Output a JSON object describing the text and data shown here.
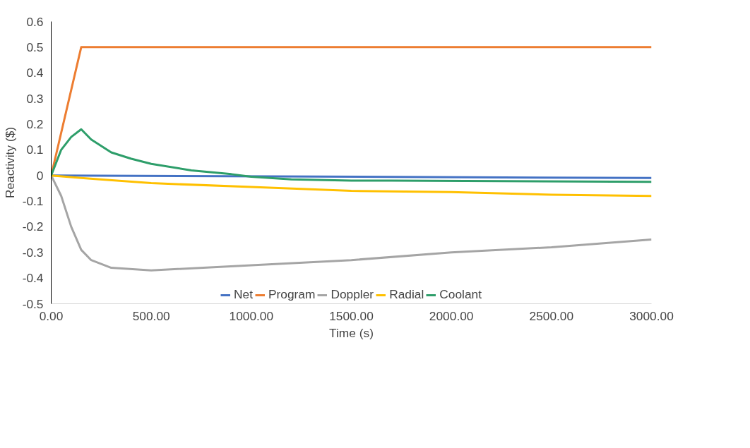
{
  "chart_data": {
    "type": "line",
    "xlabel": "Time (s)",
    "ylabel": "Reactivity ($)",
    "xlim": [
      0,
      3000
    ],
    "ylim": [
      -0.5,
      0.6
    ],
    "xticks": [
      {
        "value": 0,
        "label": "0.00"
      },
      {
        "value": 500,
        "label": "500.00"
      },
      {
        "value": 1000,
        "label": "1000.00"
      },
      {
        "value": 1500,
        "label": "1500.00"
      },
      {
        "value": 2000,
        "label": "2000.00"
      },
      {
        "value": 2500,
        "label": "2500.00"
      },
      {
        "value": 3000,
        "label": "3000.00"
      }
    ],
    "yticks": [
      -0.5,
      -0.4,
      -0.3,
      -0.2,
      -0.1,
      0,
      0.1,
      0.2,
      0.3,
      0.4,
      0.5,
      0.6
    ],
    "grid": false,
    "legend": "bottom",
    "marker": "none",
    "line_style": "solid",
    "series": [
      {
        "name": "Net",
        "color": "#4472c4",
        "x": [
          0,
          3000
        ],
        "values": [
          0,
          -0.01
        ]
      },
      {
        "name": "Program",
        "color": "#ed7d31",
        "x": [
          0,
          150,
          3000
        ],
        "values": [
          0,
          0.5,
          0.5
        ]
      },
      {
        "name": "Doppler",
        "color": "#a5a5a5",
        "x": [
          0,
          50,
          100,
          150,
          200,
          300,
          500,
          1000,
          1500,
          2000,
          2500,
          3000
        ],
        "values": [
          0,
          -0.08,
          -0.2,
          -0.29,
          -0.33,
          -0.36,
          -0.37,
          -0.35,
          -0.33,
          -0.3,
          -0.28,
          -0.25
        ]
      },
      {
        "name": "Radial",
        "color": "#ffc000",
        "x": [
          0,
          150,
          500,
          1000,
          1500,
          2000,
          2500,
          3000
        ],
        "values": [
          0,
          -0.01,
          -0.03,
          -0.045,
          -0.06,
          -0.065,
          -0.075,
          -0.08
        ]
      },
      {
        "name": "Coolant",
        "color": "#2e9e6a",
        "x": [
          0,
          50,
          100,
          150,
          200,
          300,
          400,
          500,
          700,
          900,
          1000,
          1200,
          1500,
          1700,
          3000
        ],
        "values": [
          0,
          0.1,
          0.15,
          0.18,
          0.14,
          0.09,
          0.065,
          0.045,
          0.02,
          0.005,
          -0.005,
          -0.015,
          -0.02,
          -0.02,
          -0.025
        ]
      }
    ]
  }
}
